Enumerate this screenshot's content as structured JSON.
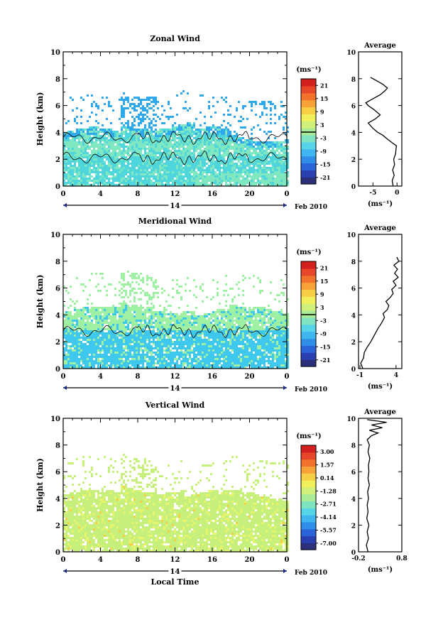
{
  "colors": {
    "cmap": [
      "#2c2f7a",
      "#2a3fb0",
      "#2a64d8",
      "#2f8fe8",
      "#3fb6ef",
      "#56d4e8",
      "#7fe3c0",
      "#a8ec98",
      "#d0f07a",
      "#f2f05a",
      "#f7cf45",
      "#f7a237",
      "#f2722c",
      "#e84628",
      "#d41f1f"
    ],
    "zonal_main": "#4fd6dc",
    "zonal_upper": "#2fa9ee",
    "zonal_low": "#7fe8c0",
    "mer_main": "#3fc8ee",
    "mer_upper": "#9ef0a2",
    "vert_main": "#c6ef7c",
    "vert_light": "#e6f56c",
    "contour": "#000000"
  },
  "chart_data": [
    {
      "type": "heatmap",
      "title": "Zonal Wind",
      "ylabel": "Height (km)",
      "xlabel": "",
      "x_ticks": [
        "0",
        "4",
        "8",
        "12",
        "16",
        "20",
        "0"
      ],
      "y_ticks": [
        "0",
        "2",
        "4",
        "6",
        "8",
        "10"
      ],
      "xlim": [
        0,
        24
      ],
      "ylim": [
        0,
        10
      ],
      "day_label": "14",
      "date_label": "Feb 2010",
      "colorbar": {
        "unit": "(ms⁻¹)",
        "ticks": [
          "21",
          "15",
          "9",
          "3",
          "-3",
          "-9",
          "-15",
          "-21"
        ]
      },
      "average": {
        "title": "Average",
        "unit": "(ms⁻¹)",
        "x_ticks": [
          "-5",
          "0"
        ],
        "y_ticks": [
          "0",
          "2",
          "4",
          "6",
          "8",
          "10"
        ],
        "xlim": [
          -8,
          1
        ],
        "ylim": [
          0,
          10
        ],
        "profile": [
          [
            -0.8,
            0.0
          ],
          [
            -1.0,
            0.4
          ],
          [
            -0.6,
            0.8
          ],
          [
            -0.9,
            1.2
          ],
          [
            -0.5,
            1.6
          ],
          [
            -0.7,
            2.0
          ],
          [
            -0.3,
            2.4
          ],
          [
            -0.2,
            2.8
          ],
          [
            -0.1,
            3.0
          ],
          [
            -0.9,
            3.2
          ],
          [
            -2.0,
            3.5
          ],
          [
            -3.0,
            3.8
          ],
          [
            -4.0,
            4.0
          ],
          [
            -5.0,
            4.3
          ],
          [
            -6.0,
            4.7
          ],
          [
            -4.5,
            5.0
          ],
          [
            -3.5,
            5.3
          ],
          [
            -4.8,
            5.7
          ],
          [
            -6.0,
            6.0
          ],
          [
            -6.5,
            6.2
          ],
          [
            -5.0,
            6.5
          ],
          [
            -3.5,
            6.8
          ],
          [
            -2.5,
            7.1
          ],
          [
            -2.0,
            7.3
          ],
          [
            -3.0,
            7.6
          ],
          [
            -4.5,
            7.9
          ],
          [
            -5.5,
            8.1
          ]
        ]
      }
    },
    {
      "type": "heatmap",
      "title": "Meridional Wind",
      "ylabel": "Height (km)",
      "xlabel": "",
      "x_ticks": [
        "0",
        "4",
        "8",
        "12",
        "16",
        "20",
        "0"
      ],
      "y_ticks": [
        "0",
        "2",
        "4",
        "6",
        "8",
        "10"
      ],
      "xlim": [
        0,
        24
      ],
      "ylim": [
        0,
        10
      ],
      "day_label": "14",
      "date_label": "Feb 2010",
      "colorbar": {
        "unit": "(ms⁻¹)",
        "ticks": [
          "21",
          "15",
          "9",
          "3",
          "-3",
          "-9",
          "-15",
          "-21"
        ]
      },
      "average": {
        "title": "Average",
        "unit": "(ms⁻¹)",
        "x_ticks": [
          "-1",
          "4"
        ],
        "y_ticks": [
          "0",
          "2",
          "4",
          "6",
          "8",
          "10"
        ],
        "xlim": [
          -1.2,
          4.8
        ],
        "ylim": [
          0,
          10
        ],
        "profile": [
          [
            -0.6,
            0.0
          ],
          [
            -0.9,
            0.4
          ],
          [
            -0.5,
            0.8
          ],
          [
            -0.4,
            1.2
          ],
          [
            0.0,
            1.6
          ],
          [
            0.5,
            2.0
          ],
          [
            1.0,
            2.5
          ],
          [
            1.5,
            3.0
          ],
          [
            2.0,
            3.4
          ],
          [
            2.4,
            3.8
          ],
          [
            2.2,
            4.1
          ],
          [
            2.8,
            4.4
          ],
          [
            3.0,
            4.7
          ],
          [
            2.6,
            5.0
          ],
          [
            3.2,
            5.3
          ],
          [
            3.6,
            5.6
          ],
          [
            3.4,
            5.9
          ],
          [
            4.0,
            6.2
          ],
          [
            3.6,
            6.5
          ],
          [
            4.3,
            6.8
          ],
          [
            3.8,
            7.1
          ],
          [
            4.2,
            7.4
          ],
          [
            3.7,
            7.7
          ],
          [
            4.4,
            8.0
          ],
          [
            4.1,
            8.3
          ]
        ]
      }
    },
    {
      "type": "heatmap",
      "title": "Vertical Wind",
      "ylabel": "Height (km)",
      "xlabel": "Local Time",
      "x_ticks": [
        "0",
        "4",
        "8",
        "12",
        "16",
        "20",
        "0"
      ],
      "y_ticks": [
        "0",
        "2",
        "4",
        "6",
        "8",
        "10"
      ],
      "xlim": [
        0,
        24
      ],
      "ylim": [
        0,
        10
      ],
      "day_label": "14",
      "date_label": "Feb 2010",
      "colorbar": {
        "unit": "(ms⁻¹)",
        "ticks": [
          "3.00",
          "1.57",
          "0.14",
          "-1.28",
          "-2.71",
          "-4.14",
          "-5.57",
          "-7.00"
        ]
      },
      "average": {
        "title": "Average",
        "unit": "(ms⁻¹)",
        "x_ticks": [
          "-0.2",
          "0.8"
        ],
        "y_ticks": [
          "0",
          "2",
          "4",
          "6",
          "8",
          "10"
        ],
        "xlim": [
          -0.2,
          0.8
        ],
        "ylim": [
          0,
          10
        ],
        "profile": [
          [
            0.02,
            0.0
          ],
          [
            -0.02,
            0.5
          ],
          [
            0.03,
            1.0
          ],
          [
            0.0,
            1.5
          ],
          [
            0.04,
            2.0
          ],
          [
            -0.01,
            2.5
          ],
          [
            0.02,
            3.0
          ],
          [
            0.0,
            3.5
          ],
          [
            0.03,
            4.0
          ],
          [
            0.01,
            4.5
          ],
          [
            0.05,
            5.0
          ],
          [
            0.02,
            5.5
          ],
          [
            0.04,
            6.0
          ],
          [
            0.03,
            6.5
          ],
          [
            0.06,
            7.0
          ],
          [
            0.02,
            7.5
          ],
          [
            0.05,
            8.0
          ],
          [
            0.0,
            8.4
          ],
          [
            0.1,
            8.7
          ],
          [
            0.25,
            8.9
          ],
          [
            0.05,
            9.1
          ],
          [
            0.35,
            9.3
          ],
          [
            0.1,
            9.5
          ],
          [
            0.45,
            9.7
          ],
          [
            0.0,
            9.9
          ]
        ]
      }
    }
  ]
}
